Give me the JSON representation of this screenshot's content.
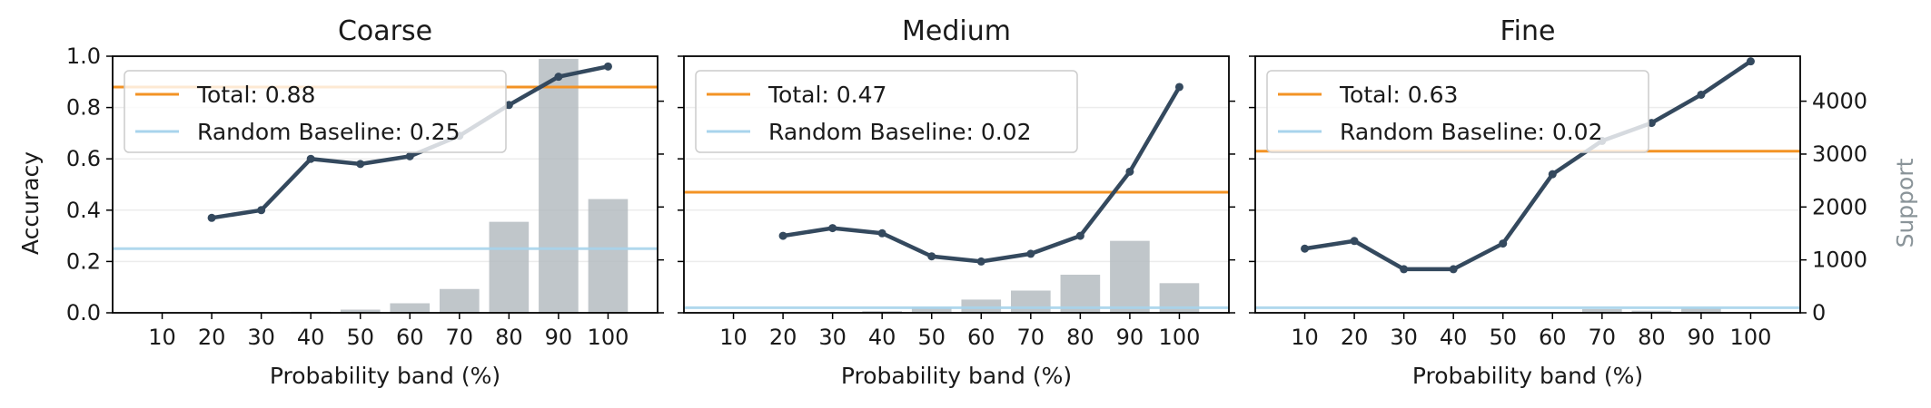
{
  "figure": {
    "y_left_label": "Accuracy",
    "y_right_label": "Support"
  },
  "chart_data": [
    {
      "type": "bar+line",
      "title": "Coarse",
      "xlabel": "Probability band (%)",
      "ylabel": "Accuracy",
      "categories": [
        "10",
        "20",
        "30",
        "40",
        "50",
        "60",
        "70",
        "80",
        "90",
        "100"
      ],
      "accuracy": [
        null,
        0.37,
        0.4,
        0.6,
        0.58,
        0.61,
        0.69,
        0.81,
        0.92,
        0.96
      ],
      "support": [
        0,
        0,
        0,
        20,
        60,
        180,
        450,
        1720,
        4800,
        2150
      ],
      "total": 0.88,
      "baseline": 0.25,
      "legend": [
        "Total: 0.88",
        "Random Baseline: 0.25"
      ],
      "ylim": [
        0,
        1.0
      ],
      "support_lim": [
        0,
        4850
      ],
      "yticks": [
        "0.0",
        "0.2",
        "0.4",
        "0.6",
        "0.8",
        "1.0"
      ],
      "show_left_ticklabels": true,
      "show_right_ticklabels": false,
      "legend_position": "upper-left"
    },
    {
      "type": "bar+line",
      "title": "Medium",
      "xlabel": "Probability band (%)",
      "categories": [
        "10",
        "20",
        "30",
        "40",
        "50",
        "60",
        "70",
        "80",
        "90",
        "100"
      ],
      "accuracy": [
        null,
        0.3,
        0.33,
        0.31,
        0.22,
        0.2,
        0.23,
        0.3,
        0.55,
        0.88
      ],
      "support": [
        0,
        0,
        0,
        30,
        100,
        250,
        420,
        720,
        1360,
        560
      ],
      "total": 0.47,
      "baseline": 0.02,
      "legend": [
        "Total: 0.47",
        "Random Baseline: 0.02"
      ],
      "ylim": [
        0,
        1.0
      ],
      "support_lim": [
        0,
        4850
      ],
      "show_left_ticklabels": false,
      "show_right_ticklabels": false,
      "legend_position": "upper-left"
    },
    {
      "type": "bar+line",
      "title": "Fine",
      "xlabel": "Probability band (%)",
      "categories": [
        "10",
        "20",
        "30",
        "40",
        "50",
        "60",
        "70",
        "80",
        "90",
        "100"
      ],
      "accuracy": [
        0.25,
        0.28,
        0.17,
        0.17,
        0.27,
        0.54,
        0.67,
        0.74,
        0.85,
        0.98
      ],
      "support": [
        0,
        0,
        0,
        0,
        0,
        0,
        70,
        40,
        90,
        0
      ],
      "total": 0.63,
      "baseline": 0.02,
      "legend": [
        "Total: 0.63",
        "Random Baseline: 0.02"
      ],
      "ylim": [
        0,
        1.0
      ],
      "support_lim": [
        0,
        4850
      ],
      "support_ticks": [
        "0",
        "1000",
        "2000",
        "3000",
        "4000"
      ],
      "show_left_ticklabels": false,
      "show_right_ticklabels": true,
      "legend_position": "upper-left"
    }
  ],
  "colors": {
    "line": "#34495e",
    "bar": "#b5bcc1",
    "total": "#f39325",
    "baseline": "#a8d4ec",
    "grid": "#ececec",
    "frame": "#000000",
    "support_label": "#8a9499"
  }
}
